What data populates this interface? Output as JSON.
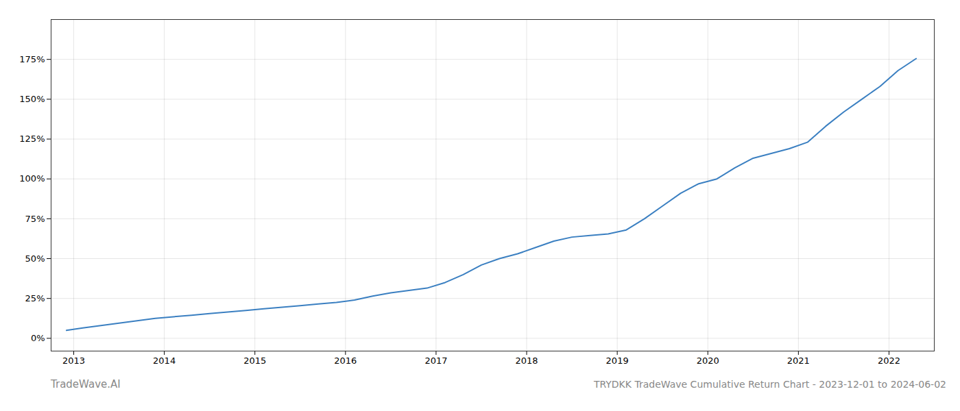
{
  "chart_data": {
    "type": "line",
    "title": "TRYDKK TradeWave Cumulative Return Chart - 2023-12-01 to 2024-06-02",
    "annotations": [
      "TradeWave.AI"
    ],
    "color": "#3a7fc1",
    "grid": true,
    "x": [
      2012.92,
      2013.1,
      2013.3,
      2013.5,
      2013.7,
      2013.9,
      2014.1,
      2014.3,
      2014.5,
      2014.7,
      2014.9,
      2015.1,
      2015.3,
      2015.5,
      2015.7,
      2015.9,
      2016.1,
      2016.3,
      2016.5,
      2016.7,
      2016.9,
      2017.1,
      2017.3,
      2017.5,
      2017.7,
      2017.9,
      2018.1,
      2018.3,
      2018.5,
      2018.7,
      2018.9,
      2019.1,
      2019.3,
      2019.5,
      2019.7,
      2019.9,
      2020.1,
      2020.3,
      2020.5,
      2020.7,
      2020.9,
      2021.1,
      2021.3,
      2021.5,
      2021.7,
      2021.9,
      2022.1,
      2022.3
    ],
    "values": [
      5.0,
      6.5,
      8.0,
      9.5,
      11.0,
      12.5,
      13.5,
      14.5,
      15.5,
      16.5,
      17.5,
      18.5,
      19.5,
      20.5,
      21.5,
      22.5,
      24.0,
      26.5,
      28.5,
      30.0,
      31.5,
      35.0,
      40.0,
      46.0,
      50.0,
      53.0,
      57.0,
      61.0,
      63.5,
      64.5,
      65.5,
      68.0,
      75.0,
      83.0,
      91.0,
      97.0,
      100.0,
      107.0,
      113.0,
      116.0,
      119.0,
      123.0,
      133.0,
      142.0,
      150.0,
      158.0,
      168.0,
      175.5
    ],
    "xlim": [
      2012.75,
      2022.5
    ],
    "xticks": [
      2013,
      2014,
      2015,
      2016,
      2017,
      2018,
      2019,
      2020,
      2021,
      2022
    ],
    "ylim": [
      -8,
      200
    ],
    "yticks": [
      {
        "value": 0,
        "label": "0%"
      },
      {
        "value": 25,
        "label": "25%"
      },
      {
        "value": 50,
        "label": "50%"
      },
      {
        "value": 75,
        "label": "75%"
      },
      {
        "value": 100,
        "label": "100%"
      },
      {
        "value": 125,
        "label": "125%"
      },
      {
        "value": 150,
        "label": "150%"
      },
      {
        "value": 175,
        "label": "175%"
      }
    ]
  }
}
